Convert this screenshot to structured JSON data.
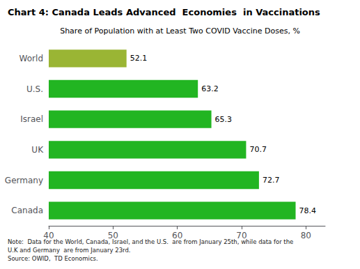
{
  "chart_data": {
    "type": "bar",
    "orientation": "horizontal",
    "title": "Chart 4: Canada Leads Advanced  Economies  in Vaccinations",
    "subtitle": "Share of Population with at Least Two COVID Vaccine Doses, %",
    "note": "Note:  Data for the World, Canada, Israel, and the U.S.  are from January 25th, while data for the\nU.K and Germany  are from January 23rd.\nSource: OWID,  TD Economics.",
    "categories": [
      "Canada",
      "Germany",
      "UK",
      "Israel",
      "U.S.",
      "World"
    ],
    "values": [
      78.4,
      72.7,
      70.7,
      65.3,
      63.2,
      52.1
    ],
    "colors": [
      "#22b522",
      "#22b522",
      "#22b522",
      "#22b522",
      "#22b522",
      "#9ab534"
    ],
    "xlim": [
      40,
      83
    ],
    "xticks": [
      40,
      50,
      60,
      70,
      80
    ],
    "grid": false,
    "data_labels": true
  }
}
